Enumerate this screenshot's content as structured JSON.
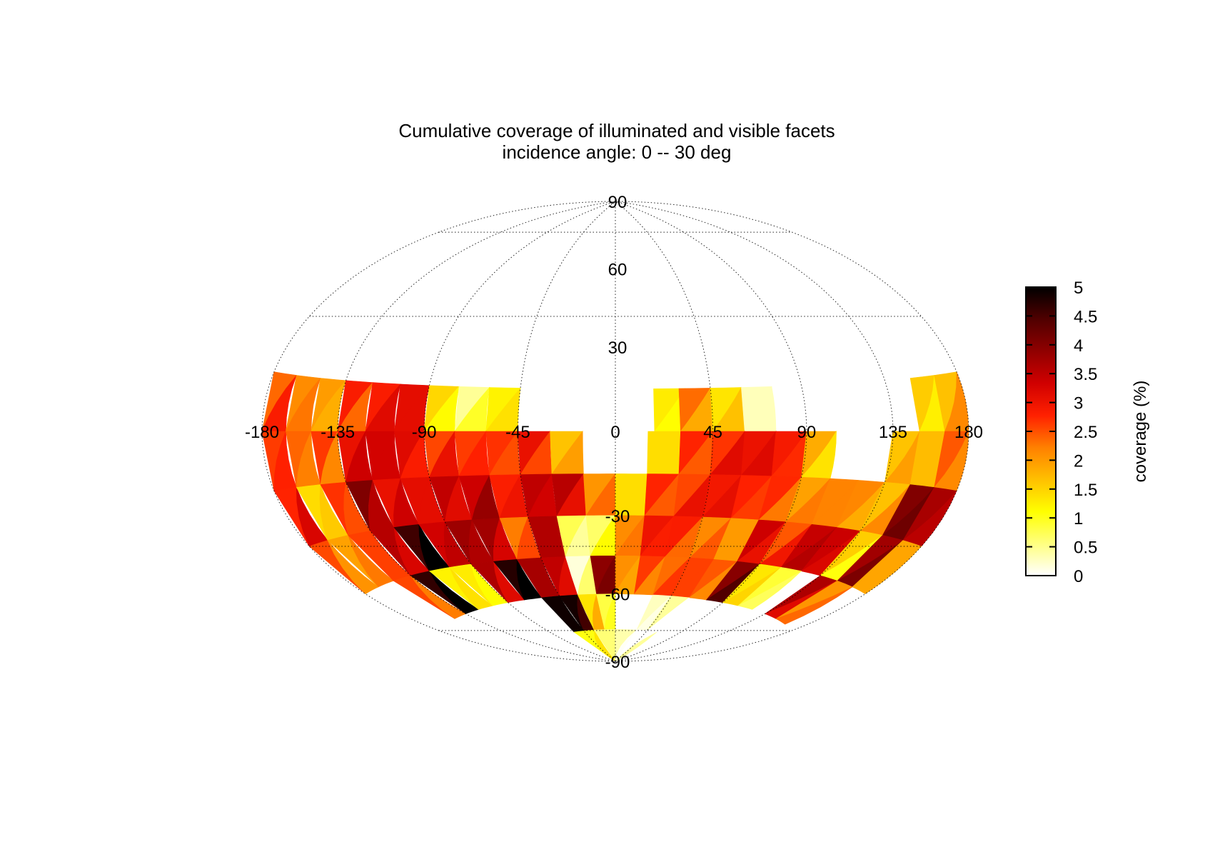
{
  "chart_data": {
    "type": "heatmap",
    "projection": "hammer",
    "title": "Cumulative coverage of illuminated and visible facets",
    "subtitle": "incidence angle:  0 -- 30 deg",
    "lon_ticks": [
      -180,
      -135,
      -90,
      -45,
      0,
      45,
      90,
      135,
      180
    ],
    "lat_ticks": [
      90,
      60,
      30,
      -30,
      -60,
      -90
    ],
    "graticule_lon": [
      -180,
      -135,
      -90,
      -45,
      0,
      45,
      90,
      135,
      180
    ],
    "graticule_lat": [
      -90,
      -60,
      -30,
      30,
      60,
      90
    ],
    "grid": true,
    "colorbar": {
      "label": "coverage (%)",
      "range": [
        0,
        5
      ],
      "ticks": [
        "0",
        "0.5",
        "1",
        "1.5",
        "2",
        "2.5",
        "3",
        "3.5",
        "4",
        "4.5",
        "5"
      ],
      "colormap": "hot_reversed",
      "placement": "right",
      "stops": [
        "#ffffff",
        "#ffff80",
        "#ffff00",
        "#ffc000",
        "#ff8000",
        "#ff2000",
        "#d00000",
        "#900000",
        "#500000",
        "#000000"
      ]
    },
    "cell_size_deg": 15,
    "cells": [
      [
        -172.5,
        7.5,
        2.6
      ],
      [
        -157.5,
        7.5,
        2.2
      ],
      [
        -142.5,
        7.5,
        1.9
      ],
      [
        -127.5,
        7.5,
        2.6
      ],
      [
        -112.5,
        7.5,
        3.0
      ],
      [
        -97.5,
        7.5,
        3.1
      ],
      [
        -82.5,
        7.5,
        1.3
      ],
      [
        -67.5,
        7.5,
        0.7
      ],
      [
        -52.5,
        7.5,
        1.3
      ],
      [
        25.5,
        7.5,
        1.2
      ],
      [
        37.5,
        7.5,
        2.1
      ],
      [
        52.5,
        7.5,
        1.5
      ],
      [
        67.5,
        7.5,
        0.3
      ],
      [
        157.5,
        7.5,
        1.4
      ],
      [
        172.5,
        7.5,
        1.9
      ],
      [
        -172.5,
        -7.5,
        2.7
      ],
      [
        -157.5,
        -7.5,
        2.3
      ],
      [
        -142.5,
        -7.5,
        2.4
      ],
      [
        -127.5,
        -7.5,
        3.2
      ],
      [
        -112.5,
        -7.5,
        3.3
      ],
      [
        -97.5,
        -7.5,
        3.0
      ],
      [
        -82.5,
        -7.5,
        2.8
      ],
      [
        -67.5,
        -7.5,
        2.7
      ],
      [
        -52.5,
        -7.5,
        2.6
      ],
      [
        -37.5,
        -7.5,
        2.8
      ],
      [
        -22.5,
        -7.5,
        1.8
      ],
      [
        22.5,
        -7.5,
        1.4
      ],
      [
        37.5,
        -7.5,
        2.6
      ],
      [
        52.5,
        -7.5,
        2.9
      ],
      [
        67.5,
        -7.5,
        3.1
      ],
      [
        82.5,
        -7.5,
        2.8
      ],
      [
        97.5,
        -7.5,
        1.6
      ],
      [
        142.5,
        -7.5,
        1.8
      ],
      [
        157.5,
        -7.5,
        1.7
      ],
      [
        172.5,
        -7.5,
        2.3
      ],
      [
        -172.5,
        -22.5,
        3.0
      ],
      [
        -157.5,
        -22.5,
        1.5
      ],
      [
        -142.5,
        -22.5,
        2.6
      ],
      [
        -127.5,
        -22.5,
        3.8
      ],
      [
        -112.5,
        -22.5,
        3.2
      ],
      [
        -97.5,
        -22.5,
        3.1
      ],
      [
        -82.5,
        -22.5,
        3.3
      ],
      [
        -67.5,
        -22.5,
        3.6
      ],
      [
        -52.5,
        -22.5,
        2.9
      ],
      [
        -37.5,
        -22.5,
        3.4
      ],
      [
        -22.5,
        -22.5,
        3.3
      ],
      [
        -7.5,
        -22.5,
        2.2
      ],
      [
        7.5,
        -22.5,
        1.4
      ],
      [
        22.5,
        -22.5,
        2.6
      ],
      [
        37.5,
        -22.5,
        2.8
      ],
      [
        52.5,
        -22.5,
        3.0
      ],
      [
        67.5,
        -22.5,
        2.7
      ],
      [
        82.5,
        -22.5,
        2.5
      ],
      [
        97.5,
        -22.5,
        2.1
      ],
      [
        112.5,
        -22.5,
        2.2
      ],
      [
        127.5,
        -22.5,
        2.0
      ],
      [
        142.5,
        -22.5,
        1.9
      ],
      [
        157.5,
        -22.5,
        4.1
      ],
      [
        172.5,
        -22.5,
        3.6
      ],
      [
        -172.5,
        -37.5,
        2.3
      ],
      [
        -157.5,
        -37.5,
        2.1
      ],
      [
        -142.5,
        -37.5,
        2.6
      ],
      [
        -127.5,
        -37.5,
        3.4
      ],
      [
        -112.5,
        -37.5,
        4.8
      ],
      [
        -97.5,
        -37.5,
        3.4
      ],
      [
        -82.5,
        -37.5,
        3.7
      ],
      [
        -67.5,
        -37.5,
        3.5
      ],
      [
        -52.5,
        -37.5,
        2.4
      ],
      [
        -37.5,
        -37.5,
        3.6
      ],
      [
        -22.5,
        -37.5,
        0.6
      ],
      [
        -7.5,
        -37.5,
        0.9
      ],
      [
        7.5,
        -37.5,
        2.2
      ],
      [
        22.5,
        -37.5,
        2.9
      ],
      [
        37.5,
        -37.5,
        2.6
      ],
      [
        52.5,
        -37.5,
        2.3
      ],
      [
        67.5,
        -37.5,
        2.0
      ],
      [
        82.5,
        -37.5,
        3.2
      ],
      [
        97.5,
        -37.5,
        2.7
      ],
      [
        112.5,
        -37.5,
        3.5
      ],
      [
        127.5,
        -37.5,
        3.3
      ],
      [
        142.5,
        -37.5,
        1.3
      ],
      [
        157.5,
        -37.5,
        3.9
      ],
      [
        172.5,
        -37.5,
        1.9
      ],
      [
        -142.5,
        -52.5,
        2.4
      ],
      [
        -127.5,
        -52.5,
        4.9
      ],
      [
        -112.5,
        -52.5,
        1.3
      ],
      [
        -97.5,
        -52.5,
        1.2
      ],
      [
        -82.5,
        -52.5,
        3.4
      ],
      [
        -67.5,
        -52.5,
        4.9
      ],
      [
        -52.5,
        -52.5,
        3.7
      ],
      [
        -37.5,
        -52.5,
        3.3
      ],
      [
        -22.5,
        -52.5,
        0.4
      ],
      [
        -7.5,
        -52.5,
        4.0
      ],
      [
        7.5,
        -52.5,
        2.0
      ],
      [
        22.5,
        -52.5,
        2.4
      ],
      [
        37.5,
        -52.5,
        2.5
      ],
      [
        52.5,
        -52.5,
        2.6
      ],
      [
        67.5,
        -52.5,
        2.3
      ],
      [
        82.5,
        -52.5,
        4.2
      ],
      [
        97.5,
        -52.5,
        1.4
      ],
      [
        112.5,
        -52.5,
        0.8
      ],
      [
        142.5,
        -52.5,
        3.4
      ],
      [
        157.5,
        -52.5,
        2.2
      ],
      [
        -52.5,
        -67.5,
        4.9
      ],
      [
        -37.5,
        -67.5,
        4.7
      ],
      [
        -22.5,
        -67.5,
        1.6
      ],
      [
        -7.5,
        -67.5,
        0.9
      ],
      [
        37.5,
        -67.5,
        0.2
      ],
      [
        52.5,
        -67.5,
        0.2
      ],
      [
        -45.0,
        -82.5,
        1.2
      ],
      [
        -15.0,
        -82.5,
        0.6
      ],
      [
        15.0,
        -82.5,
        0.2
      ],
      [
        45.0,
        -82.5,
        0.2
      ]
    ]
  }
}
